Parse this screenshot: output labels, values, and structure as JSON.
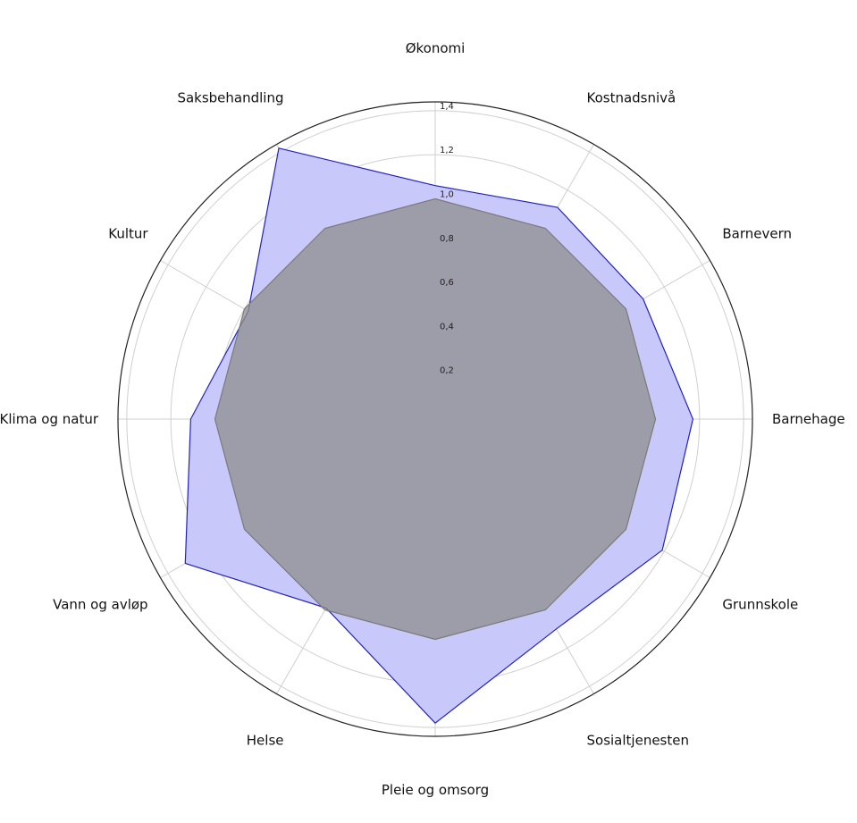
{
  "chart_data": {
    "type": "radar",
    "title": "",
    "categories": [
      "Økonomi",
      "Kostnadsnivå",
      "Barnevern",
      "Barnehage",
      "Grunnskole",
      "Sosialtjenesten",
      "Pleie og omsorg",
      "Helse",
      "Vann og avløp",
      "Klima og natur",
      "Kultur",
      "Saksbehandling"
    ],
    "series": [
      {
        "values": [
          1.06,
          1.11,
          1.09,
          1.17,
          1.19,
          1.1,
          1.38,
          0.99,
          1.31,
          1.11,
          0.98,
          1.42
        ],
        "fill": "#c8c8fa",
        "stroke": "#2222bb"
      },
      {
        "values": [
          1.0,
          1.0,
          1.0,
          1.0,
          1.0,
          1.0,
          1.0,
          1.0,
          1.0,
          1.0,
          1.0,
          1.0
        ],
        "fill": "#8f8f8f",
        "stroke": "#7a7a7a"
      }
    ],
    "rlim": [
      0,
      1.44
    ],
    "rticks": [
      0.2,
      0.4,
      0.6,
      0.8,
      1.0,
      1.2,
      1.4
    ],
    "rtick_labels": [
      "0,2",
      "0,4",
      "0,6",
      "0,8",
      "1,0",
      "1,2",
      "1,4"
    ],
    "grid": true,
    "colors": {
      "grid": "#cfcfcf",
      "frame": "#222222"
    }
  }
}
